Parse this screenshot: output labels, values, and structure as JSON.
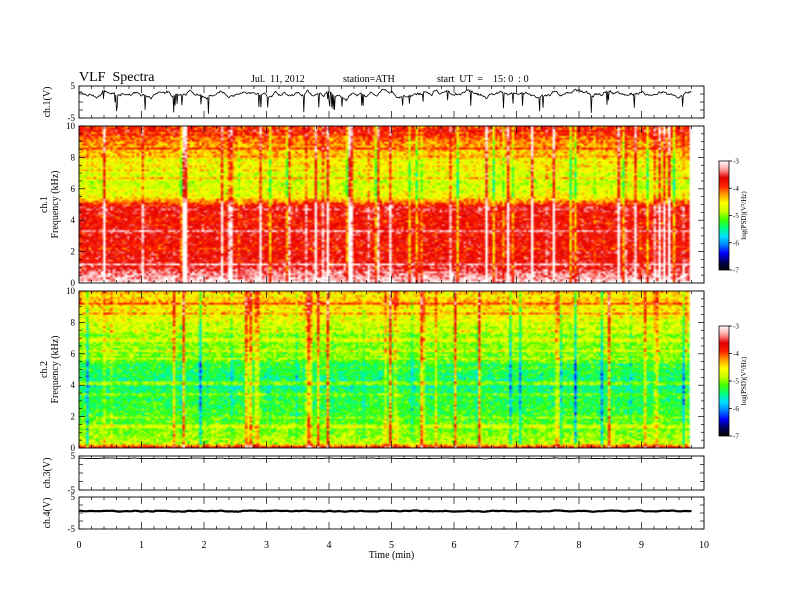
{
  "header": {
    "title": "VLF  Spectra",
    "date": "Jul.  11, 2012",
    "station": "station=ATH",
    "start": "start  UT  =    15: 0  : 0"
  },
  "colors": {
    "scale": [
      "#000000",
      "#000060",
      "#0000ff",
      "#0080ff",
      "#00e0ff",
      "#00ff80",
      "#40ff00",
      "#c8ff00",
      "#ffff00",
      "#ffa000",
      "#ff2000",
      "#e00000",
      "#ffa0a0",
      "#ffffff"
    ],
    "background": "#ffffff",
    "trace": "#000000"
  },
  "chart_data": [
    {
      "type": "line",
      "panel": "ch1-waveform",
      "ylabel": "ch.1(V)",
      "yticks": [
        "5",
        "-5"
      ],
      "ylim": [
        -5,
        5
      ],
      "xlim": [
        0,
        10
      ],
      "x_extent": [
        0,
        9.8
      ],
      "y_mean": 2.3,
      "y_amplitude": 2.0
    },
    {
      "type": "heatmap",
      "panel": "ch1-spectrogram",
      "ylabel_lines": [
        "ch.1",
        "Frequency (kHz)"
      ],
      "yticks": [
        "10",
        "8",
        "6",
        "4",
        "2",
        "0"
      ],
      "ylim": [
        0,
        10
      ],
      "xlim": [
        0,
        10
      ],
      "x_extent": [
        0,
        9.8
      ],
      "colorbar": {
        "label": "log(PSD)(V²/Hz)",
        "ticks": [
          "-3",
          "-4",
          "-5",
          "-6",
          "-7"
        ],
        "range": [
          -7,
          -3
        ]
      },
      "profile": [
        {
          "f": 0.0,
          "level": -3.0
        },
        {
          "f": 0.2,
          "level": -3.2
        },
        {
          "f": 0.5,
          "level": -3.3
        },
        {
          "f": 1.0,
          "level": -3.6
        },
        {
          "f": 2.0,
          "level": -3.8
        },
        {
          "f": 3.0,
          "level": -3.7
        },
        {
          "f": 4.0,
          "level": -3.8
        },
        {
          "f": 4.8,
          "level": -3.6
        },
        {
          "f": 5.5,
          "level": -4.6
        },
        {
          "f": 6.5,
          "level": -4.8
        },
        {
          "f": 7.5,
          "level": -4.6
        },
        {
          "f": 8.5,
          "level": -4.3
        },
        {
          "f": 9.5,
          "level": -4.0
        },
        {
          "f": 10.0,
          "level": -3.9
        }
      ]
    },
    {
      "type": "heatmap",
      "panel": "ch2-spectrogram",
      "ylabel_lines": [
        "ch.2",
        "Frequency (kHz)"
      ],
      "yticks": [
        "10",
        "8",
        "6",
        "4",
        "2",
        "0"
      ],
      "ylim": [
        0,
        10
      ],
      "xlim": [
        0,
        10
      ],
      "x_extent": [
        0,
        9.8
      ],
      "colorbar": {
        "label": "log(PSD)(V²/Hz)",
        "ticks": [
          "-3",
          "-4",
          "-5",
          "-6",
          "-7"
        ],
        "range": [
          -7,
          -3
        ]
      },
      "profile": [
        {
          "f": 0.0,
          "level": -3.5
        },
        {
          "f": 0.3,
          "level": -4.8
        },
        {
          "f": 1.0,
          "level": -5.0
        },
        {
          "f": 2.0,
          "level": -5.2
        },
        {
          "f": 3.0,
          "level": -5.3
        },
        {
          "f": 4.0,
          "level": -5.5
        },
        {
          "f": 5.0,
          "level": -5.3
        },
        {
          "f": 6.0,
          "level": -5.0
        },
        {
          "f": 7.0,
          "level": -5.0
        },
        {
          "f": 8.0,
          "level": -4.7
        },
        {
          "f": 9.0,
          "level": -4.5
        },
        {
          "f": 10.0,
          "level": -4.3
        }
      ]
    },
    {
      "type": "line",
      "panel": "ch3-waveform",
      "ylabel": "ch.3(V)",
      "yticks": [
        "5",
        "-5"
      ],
      "ylim": [
        -5,
        5
      ],
      "xlim": [
        0,
        10
      ],
      "x_extent": [
        0,
        9.8
      ],
      "y_mean": 4.3,
      "y_amplitude": 0.15
    },
    {
      "type": "line",
      "panel": "ch4-waveform",
      "ylabel": "ch.4(V)",
      "yticks": [
        "5",
        "-5"
      ],
      "ylim": [
        -5,
        5
      ],
      "xlim": [
        0,
        10
      ],
      "x_extent": [
        0,
        9.8
      ],
      "y_mean": 0.6,
      "y_amplitude": 0.25,
      "xlabel": "Time  (min)",
      "xticks": [
        "0",
        "1",
        "2",
        "3",
        "4",
        "5",
        "6",
        "7",
        "8",
        "9",
        "10"
      ]
    }
  ]
}
